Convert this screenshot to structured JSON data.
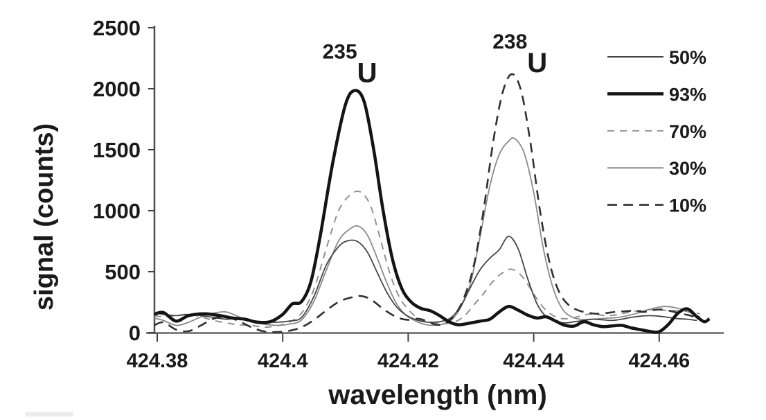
{
  "chart_data": {
    "type": "line",
    "title": "",
    "xlabel": "wavelength (nm)",
    "ylabel": "signal (counts)",
    "xlim": [
      424.379,
      424.468
    ],
    "ylim": [
      0,
      2500
    ],
    "xticks": [
      424.38,
      424.4,
      424.42,
      424.44,
      424.46
    ],
    "yticks": [
      0,
      500,
      1000,
      1500,
      2000,
      2500
    ],
    "grid": false,
    "legend_position": "top-right",
    "axis_color_x": "#808080",
    "axis_color_y": "#4d4d4d",
    "tick_color": "#404040",
    "annotations": [
      {
        "id": "u235",
        "superscript": "235",
        "symbol": "U",
        "x_nm": 424.4107,
        "y_counts": 2055
      },
      {
        "id": "u238",
        "superscript": "238",
        "symbol": "U",
        "x_nm": 424.4378,
        "y_counts": 2135
      }
    ],
    "series": [
      {
        "name": "50%",
        "color": "#444444",
        "width": 1.8,
        "dash": null,
        "z": 3,
        "points": [
          [
            424.3795,
            165
          ],
          [
            424.381,
            150
          ],
          [
            424.383,
            140
          ],
          [
            424.385,
            150
          ],
          [
            424.387,
            140
          ],
          [
            424.389,
            125
          ],
          [
            424.391,
            110
          ],
          [
            424.393,
            120
          ],
          [
            424.395,
            100
          ],
          [
            424.397,
            90
          ],
          [
            424.399,
            85
          ],
          [
            424.401,
            95
          ],
          [
            424.403,
            125
          ],
          [
            424.405,
            300
          ],
          [
            424.407,
            560
          ],
          [
            424.409,
            710
          ],
          [
            424.4105,
            755
          ],
          [
            424.412,
            745
          ],
          [
            424.4135,
            660
          ],
          [
            424.415,
            500
          ],
          [
            424.4165,
            340
          ],
          [
            424.418,
            220
          ],
          [
            424.4195,
            150
          ],
          [
            424.421,
            110
          ],
          [
            424.4225,
            90
          ],
          [
            424.424,
            85
          ],
          [
            424.4255,
            95
          ],
          [
            424.427,
            130
          ],
          [
            424.4285,
            230
          ],
          [
            424.43,
            380
          ],
          [
            424.4315,
            520
          ],
          [
            424.433,
            610
          ],
          [
            424.4345,
            680
          ],
          [
            424.436,
            790
          ],
          [
            424.4375,
            690
          ],
          [
            424.439,
            450
          ],
          [
            424.4405,
            240
          ],
          [
            424.442,
            130
          ],
          [
            424.4435,
            95
          ],
          [
            424.445,
            80
          ],
          [
            424.4465,
            90
          ],
          [
            424.448,
            100
          ],
          [
            424.4495,
            110
          ],
          [
            424.451,
            105
          ],
          [
            424.4525,
            100
          ],
          [
            424.454,
            110
          ],
          [
            424.4555,
            125
          ],
          [
            424.457,
            135
          ],
          [
            424.4585,
            140
          ],
          [
            424.46,
            135
          ],
          [
            424.4615,
            125
          ],
          [
            424.463,
            115
          ],
          [
            424.4645,
            110
          ],
          [
            424.466,
            100
          ]
        ]
      },
      {
        "name": "93%",
        "color": "#141414",
        "width": 4.5,
        "dash": null,
        "z": 5,
        "points": [
          [
            424.3795,
            150
          ],
          [
            424.381,
            165
          ],
          [
            424.383,
            95
          ],
          [
            424.385,
            140
          ],
          [
            424.3875,
            155
          ],
          [
            424.39,
            140
          ],
          [
            424.392,
            120
          ],
          [
            424.394,
            110
          ],
          [
            424.396,
            85
          ],
          [
            424.398,
            90
          ],
          [
            424.4,
            150
          ],
          [
            424.4015,
            235
          ],
          [
            424.403,
            255
          ],
          [
            424.4045,
            420
          ],
          [
            424.406,
            800
          ],
          [
            424.408,
            1400
          ],
          [
            424.41,
            1870
          ],
          [
            424.4115,
            1985
          ],
          [
            424.413,
            1890
          ],
          [
            424.4145,
            1500
          ],
          [
            424.416,
            1000
          ],
          [
            424.4175,
            600
          ],
          [
            424.419,
            360
          ],
          [
            424.4205,
            250
          ],
          [
            424.422,
            200
          ],
          [
            424.4235,
            180
          ],
          [
            424.425,
            140
          ],
          [
            424.4265,
            90
          ],
          [
            424.428,
            65
          ],
          [
            424.43,
            80
          ],
          [
            424.4315,
            95
          ],
          [
            424.433,
            110
          ],
          [
            424.4345,
            170
          ],
          [
            424.436,
            215
          ],
          [
            424.4375,
            185
          ],
          [
            424.439,
            145
          ],
          [
            424.4405,
            120
          ],
          [
            424.442,
            130
          ],
          [
            424.4435,
            95
          ],
          [
            424.445,
            60
          ],
          [
            424.4465,
            55
          ],
          [
            424.448,
            90
          ],
          [
            424.4495,
            65
          ],
          [
            424.451,
            50
          ],
          [
            424.4525,
            55
          ],
          [
            424.454,
            60
          ],
          [
            424.4555,
            40
          ],
          [
            424.457,
            25
          ],
          [
            424.4585,
            10
          ],
          [
            424.46,
            8
          ],
          [
            424.4615,
            70
          ],
          [
            424.463,
            160
          ],
          [
            424.4645,
            195
          ],
          [
            424.466,
            130
          ],
          [
            424.4672,
            90
          ],
          [
            424.468,
            115
          ]
        ]
      },
      {
        "name": "70%",
        "color": "#919191",
        "width": 2,
        "dash": "10 8",
        "z": 1,
        "points": [
          [
            424.3795,
            140
          ],
          [
            424.381,
            130
          ],
          [
            424.383,
            140
          ],
          [
            424.385,
            150
          ],
          [
            424.387,
            130
          ],
          [
            424.389,
            100
          ],
          [
            424.391,
            80
          ],
          [
            424.393,
            65
          ],
          [
            424.395,
            60
          ],
          [
            424.397,
            45
          ],
          [
            424.399,
            55
          ],
          [
            424.401,
            85
          ],
          [
            424.403,
            160
          ],
          [
            424.405,
            360
          ],
          [
            424.407,
            700
          ],
          [
            424.409,
            1010
          ],
          [
            424.411,
            1140
          ],
          [
            424.4125,
            1150
          ],
          [
            424.414,
            1040
          ],
          [
            424.4155,
            780
          ],
          [
            424.417,
            500
          ],
          [
            424.4185,
            300
          ],
          [
            424.42,
            190
          ],
          [
            424.4215,
            120
          ],
          [
            424.423,
            90
          ],
          [
            424.4245,
            80
          ],
          [
            424.426,
            75
          ],
          [
            424.4275,
            90
          ],
          [
            424.429,
            140
          ],
          [
            424.4305,
            230
          ],
          [
            424.432,
            320
          ],
          [
            424.4335,
            420
          ],
          [
            424.435,
            490
          ],
          [
            424.4365,
            520
          ],
          [
            424.438,
            470
          ],
          [
            424.4395,
            360
          ],
          [
            424.441,
            240
          ],
          [
            424.4425,
            160
          ],
          [
            424.444,
            120
          ],
          [
            424.4455,
            115
          ],
          [
            424.447,
            130
          ],
          [
            424.4485,
            150
          ],
          [
            424.45,
            150
          ],
          [
            424.4515,
            140
          ],
          [
            424.453,
            145
          ],
          [
            424.4545,
            160
          ],
          [
            424.456,
            175
          ],
          [
            424.4575,
            185
          ],
          [
            424.459,
            190
          ],
          [
            424.4605,
            185
          ],
          [
            424.462,
            180
          ],
          [
            424.4635,
            180
          ],
          [
            424.465,
            170
          ],
          [
            424.4665,
            155
          ]
        ]
      },
      {
        "name": "30%",
        "color": "#8a8a8a",
        "width": 1.8,
        "dash": null,
        "z": 2,
        "points": [
          [
            424.3795,
            120
          ],
          [
            424.381,
            100
          ],
          [
            424.383,
            60
          ],
          [
            424.385,
            85
          ],
          [
            424.387,
            130
          ],
          [
            424.389,
            160
          ],
          [
            424.391,
            170
          ],
          [
            424.393,
            130
          ],
          [
            424.395,
            90
          ],
          [
            424.397,
            70
          ],
          [
            424.399,
            60
          ],
          [
            424.401,
            70
          ],
          [
            424.403,
            105
          ],
          [
            424.405,
            260
          ],
          [
            424.407,
            520
          ],
          [
            424.409,
            760
          ],
          [
            424.411,
            860
          ],
          [
            424.4122,
            870
          ],
          [
            424.4135,
            800
          ],
          [
            424.415,
            620
          ],
          [
            424.4165,
            420
          ],
          [
            424.418,
            250
          ],
          [
            424.4195,
            150
          ],
          [
            424.421,
            100
          ],
          [
            424.4225,
            70
          ],
          [
            424.424,
            60
          ],
          [
            424.4255,
            70
          ],
          [
            424.427,
            110
          ],
          [
            424.4285,
            220
          ],
          [
            424.43,
            420
          ],
          [
            424.4315,
            800
          ],
          [
            424.433,
            1200
          ],
          [
            424.4345,
            1460
          ],
          [
            424.436,
            1570
          ],
          [
            424.437,
            1590
          ],
          [
            424.4385,
            1470
          ],
          [
            424.44,
            1150
          ],
          [
            424.4415,
            700
          ],
          [
            424.443,
            380
          ],
          [
            424.4445,
            200
          ],
          [
            424.446,
            130
          ],
          [
            424.4475,
            110
          ],
          [
            424.449,
            110
          ],
          [
            424.4505,
            115
          ],
          [
            424.452,
            120
          ],
          [
            424.4535,
            125
          ],
          [
            424.455,
            140
          ],
          [
            424.4565,
            160
          ],
          [
            424.458,
            185
          ],
          [
            424.4595,
            205
          ],
          [
            424.461,
            215
          ],
          [
            424.4625,
            205
          ],
          [
            424.464,
            185
          ],
          [
            424.4655,
            150
          ],
          [
            424.4665,
            130
          ]
        ]
      },
      {
        "name": "10%",
        "color": "#303030",
        "width": 2.6,
        "dash": "14 9",
        "z": 4,
        "points": [
          [
            424.3795,
            60
          ],
          [
            424.381,
            85
          ],
          [
            424.383,
            25
          ],
          [
            424.385,
            12
          ],
          [
            424.387,
            60
          ],
          [
            424.389,
            115
          ],
          [
            424.391,
            130
          ],
          [
            424.393,
            95
          ],
          [
            424.395,
            45
          ],
          [
            424.397,
            10
          ],
          [
            424.399,
            5
          ],
          [
            424.401,
            15
          ],
          [
            424.403,
            45
          ],
          [
            424.405,
            105
          ],
          [
            424.407,
            185
          ],
          [
            424.409,
            255
          ],
          [
            424.411,
            290
          ],
          [
            424.4125,
            300
          ],
          [
            424.414,
            275
          ],
          [
            424.4155,
            215
          ],
          [
            424.417,
            160
          ],
          [
            424.4185,
            120
          ],
          [
            424.42,
            105
          ],
          [
            424.4215,
            115
          ],
          [
            424.423,
            95
          ],
          [
            424.4245,
            65
          ],
          [
            424.426,
            80
          ],
          [
            424.4275,
            150
          ],
          [
            424.429,
            300
          ],
          [
            424.4305,
            560
          ],
          [
            424.432,
            1000
          ],
          [
            424.4335,
            1550
          ],
          [
            424.435,
            1960
          ],
          [
            424.4365,
            2120
          ],
          [
            424.438,
            1980
          ],
          [
            424.4395,
            1550
          ],
          [
            424.441,
            1000
          ],
          [
            424.4425,
            580
          ],
          [
            424.444,
            340
          ],
          [
            424.4455,
            230
          ],
          [
            424.447,
            185
          ],
          [
            424.4485,
            165
          ],
          [
            424.45,
            155
          ],
          [
            424.4515,
            160
          ],
          [
            424.453,
            170
          ],
          [
            424.4545,
            175
          ],
          [
            424.456,
            180
          ],
          [
            424.4575,
            170
          ],
          [
            424.459,
            185
          ],
          [
            424.4605,
            190
          ],
          [
            424.462,
            175
          ],
          [
            424.4635,
            155
          ],
          [
            424.465,
            140
          ],
          [
            424.466,
            115
          ]
        ]
      }
    ]
  }
}
